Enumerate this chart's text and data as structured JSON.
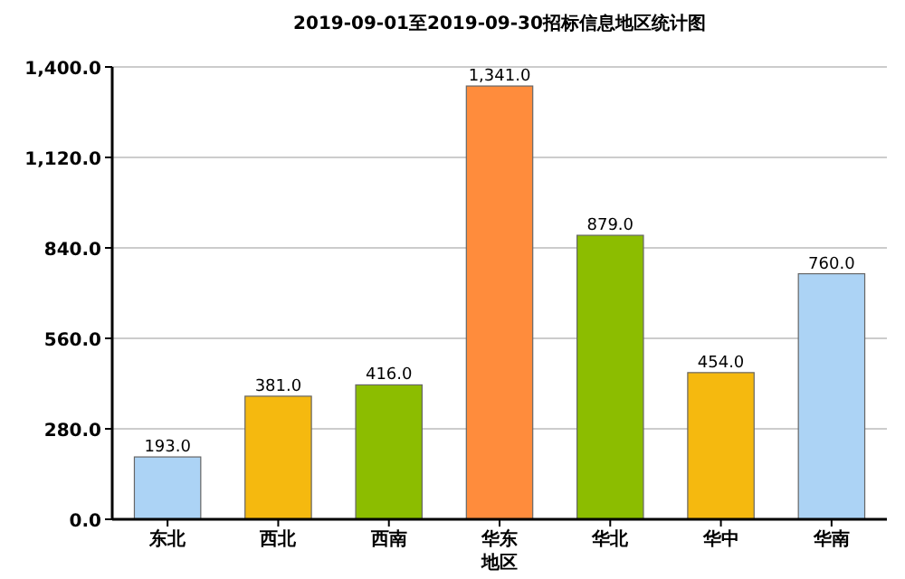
{
  "chart_data": {
    "type": "bar",
    "title": "2019-09-01至2019-09-30招标信息地区统计图",
    "xlabel": "地区",
    "categories": [
      "东北",
      "西北",
      "西南",
      "华东",
      "华北",
      "华中",
      "华南"
    ],
    "values": [
      193,
      381,
      416,
      1341,
      879,
      454,
      760
    ],
    "colors": [
      "#acd3f5",
      "#f5b90f",
      "#8cbd00",
      "#ff8c3c",
      "#8cbd00",
      "#f5b90f",
      "#acd3f5"
    ],
    "value_labels": [
      "193.0",
      "381.0",
      "416.0",
      "1,341.0",
      "879.0",
      "454.0",
      "760.0"
    ],
    "ylim": [
      0,
      1400
    ],
    "yticks": [
      {
        "value": 0,
        "label": "0.0"
      },
      {
        "value": 280,
        "label": "280.0"
      },
      {
        "value": 560,
        "label": "560.0"
      },
      {
        "value": 840,
        "label": "840.0"
      },
      {
        "value": 1120,
        "label": "1,120.0"
      },
      {
        "value": 1400,
        "label": "1,400.0"
      }
    ],
    "grid": "y"
  }
}
